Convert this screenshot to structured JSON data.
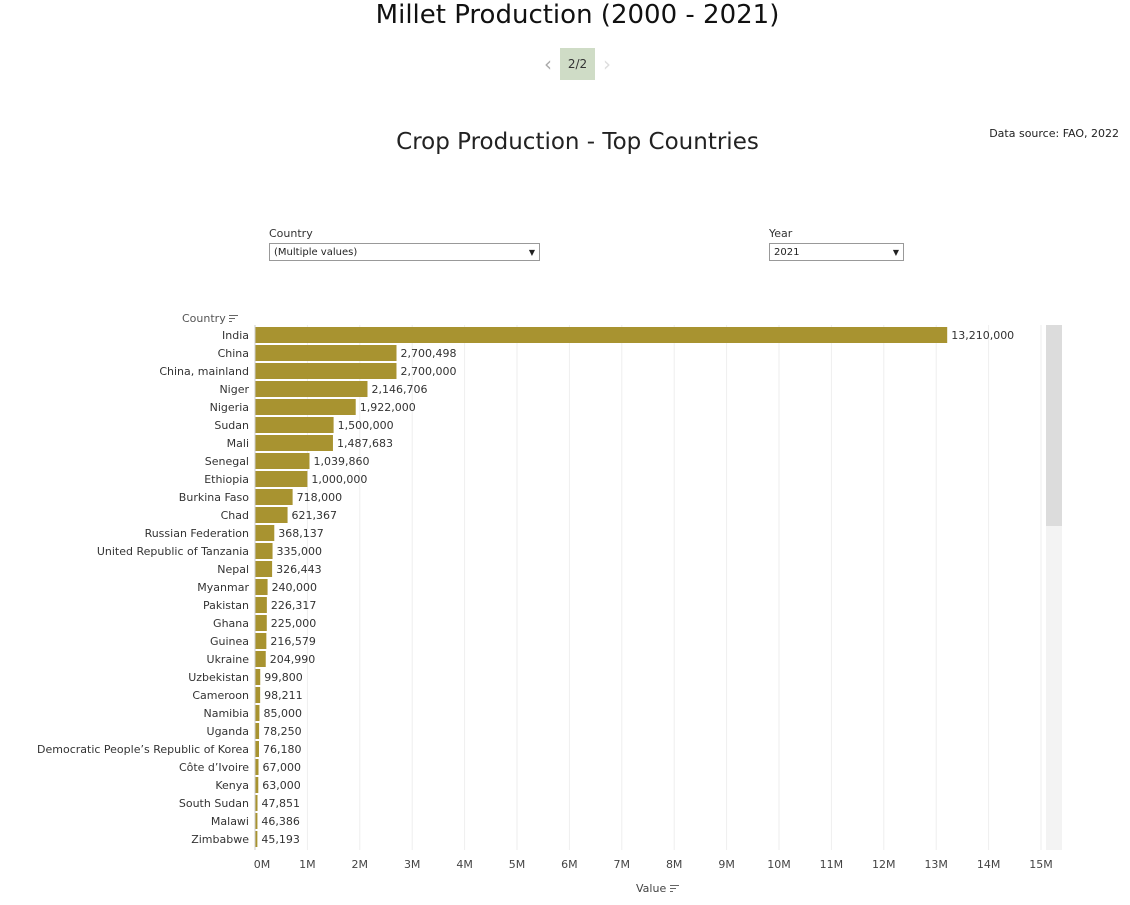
{
  "header": {
    "title": "Millet Production (2000 - 2021)",
    "page_indicator": "2/2",
    "prev_icon": "chevron-left-icon",
    "next_icon": "chevron-right-icon"
  },
  "sheet": {
    "title": "Crop Production - Top Countries",
    "source": "Data source: FAO, 2022"
  },
  "filters": {
    "country": {
      "label": "Country",
      "value": "(Multiple values)"
    },
    "year": {
      "label": "Year",
      "value": "2021"
    }
  },
  "colors": {
    "bar": "#a89330",
    "grid": "#eeeeee",
    "active_page": "#cfdcc6"
  },
  "chart_data": {
    "type": "bar",
    "orientation": "horizontal",
    "ylabel": "Country",
    "xlabel": "Value",
    "xlim": [
      0,
      15000000
    ],
    "x_ticks": [
      0,
      1000000,
      2000000,
      3000000,
      4000000,
      5000000,
      6000000,
      7000000,
      8000000,
      9000000,
      10000000,
      11000000,
      12000000,
      13000000,
      14000000,
      15000000
    ],
    "x_tick_labels": [
      "0M",
      "1M",
      "2M",
      "3M",
      "4M",
      "5M",
      "6M",
      "7M",
      "8M",
      "9M",
      "10M",
      "11M",
      "12M",
      "13M",
      "14M",
      "15M"
    ],
    "grid": true,
    "categories": [
      "India",
      "China",
      "China, mainland",
      "Niger",
      "Nigeria",
      "Sudan",
      "Mali",
      "Senegal",
      "Ethiopia",
      "Burkina Faso",
      "Chad",
      "Russian Federation",
      "United Republic of Tanzania",
      "Nepal",
      "Myanmar",
      "Pakistan",
      "Ghana",
      "Guinea",
      "Ukraine",
      "Uzbekistan",
      "Cameroon",
      "Namibia",
      "Uganda",
      "Democratic People’s Republic of Korea",
      "Côte d’Ivoire",
      "Kenya",
      "South Sudan",
      "Malawi",
      "Zimbabwe"
    ],
    "values": [
      13210000,
      2700498,
      2700000,
      2146706,
      1922000,
      1500000,
      1487683,
      1039860,
      1000000,
      718000,
      621367,
      368137,
      335000,
      326443,
      240000,
      226317,
      225000,
      216579,
      204990,
      99800,
      98211,
      85000,
      78250,
      76180,
      67000,
      63000,
      47851,
      46386,
      45193
    ],
    "value_labels": [
      "13,210,000",
      "2,700,498",
      "2,700,000",
      "2,146,706",
      "1,922,000",
      "1,500,000",
      "1,487,683",
      "1,039,860",
      "1,000,000",
      "718,000",
      "621,367",
      "368,137",
      "335,000",
      "326,443",
      "240,000",
      "226,317",
      "225,000",
      "216,579",
      "204,990",
      "99,800",
      "98,211",
      "85,000",
      "78,250",
      "76,180",
      "67,000",
      "63,000",
      "47,851",
      "46,386",
      "45,193"
    ]
  }
}
